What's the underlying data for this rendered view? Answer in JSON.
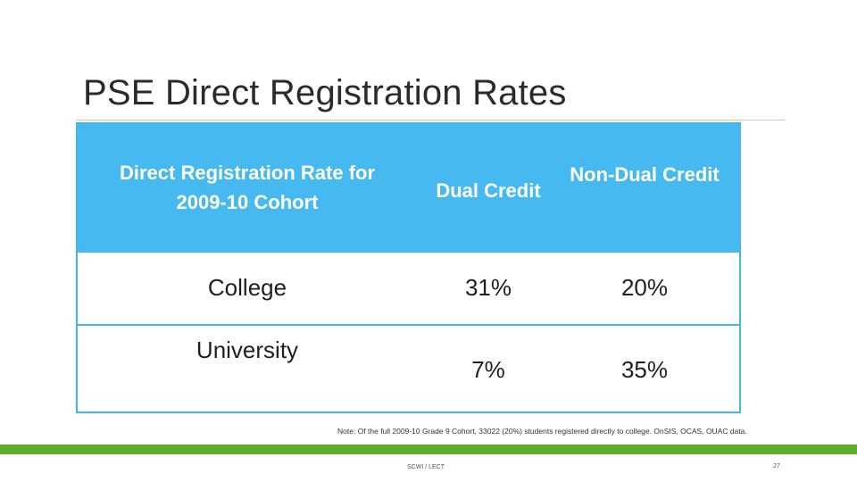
{
  "slide": {
    "title": "PSE Direct Registration Rates",
    "note": "Note: Of the full 2009-10 Grade 9 Cohort, 33022 (20%) students registered directly to college. OnSIS, OCAS, OUAC data.",
    "footer_text": "SCWI / LECT",
    "page_number": "27"
  },
  "table": {
    "header": {
      "label_line1": "Direct Registration Rate for",
      "label_line2": "2009-10 Cohort",
      "dual_credit": "Dual Credit",
      "non_dual_credit": "Non-Dual Credit"
    },
    "rows": [
      {
        "label": "College",
        "dual_credit": "31%",
        "non_dual_credit": "20%"
      },
      {
        "label": "University",
        "dual_credit": "7%",
        "non_dual_credit": "35%"
      }
    ]
  },
  "colors": {
    "header_blue": "#45b9f0",
    "footer_green": "#5db02e"
  }
}
